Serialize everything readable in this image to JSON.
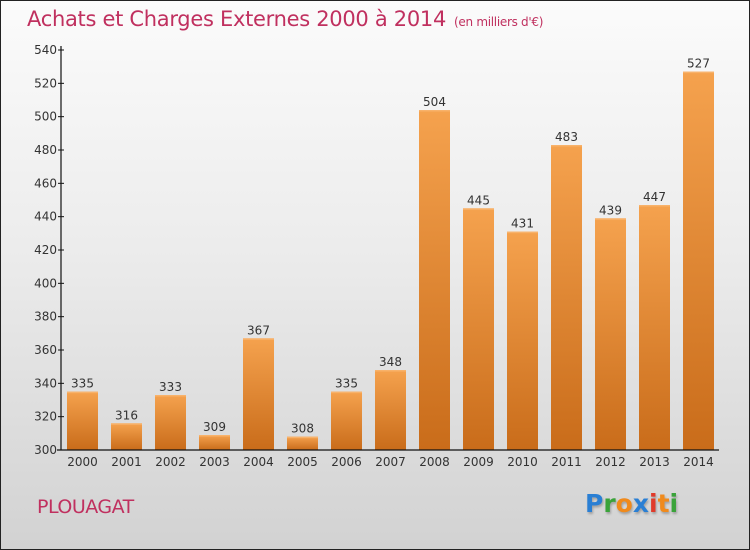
{
  "chart_data": {
    "type": "bar",
    "title": "Achats et Charges Externes 2000 à 2014",
    "subtitle": "(en milliers d'€)",
    "xlabel": "",
    "ylabel": "",
    "categories": [
      "2000",
      "2001",
      "2002",
      "2003",
      "2004",
      "2005",
      "2006",
      "2007",
      "2008",
      "2009",
      "2010",
      "2011",
      "2012",
      "2013",
      "2014"
    ],
    "values": [
      335,
      316,
      333,
      309,
      367,
      308,
      335,
      348,
      504,
      445,
      431,
      483,
      439,
      447,
      527
    ],
    "ylim": [
      300,
      540
    ],
    "yticks": [
      300,
      320,
      340,
      360,
      380,
      400,
      420,
      440,
      460,
      480,
      500,
      520,
      540
    ],
    "grid": false,
    "legend": "none",
    "bar_color_top": "#f5a24e",
    "bar_color_bottom": "#c96c1a"
  },
  "footer": {
    "city": "PLOUAGAT",
    "logo": {
      "letters": [
        {
          "ch": "P",
          "color": "#2a7fd4"
        },
        {
          "ch": "r",
          "color": "#3aa33a"
        },
        {
          "ch": "o",
          "color": "#f08a1c"
        },
        {
          "ch": "x",
          "color": "#2a7fd4"
        },
        {
          "ch": "i",
          "color": "#e03a2a"
        },
        {
          "ch": "t",
          "color": "#f08a1c"
        },
        {
          "ch": "i",
          "color": "#3aa33a"
        }
      ]
    }
  }
}
